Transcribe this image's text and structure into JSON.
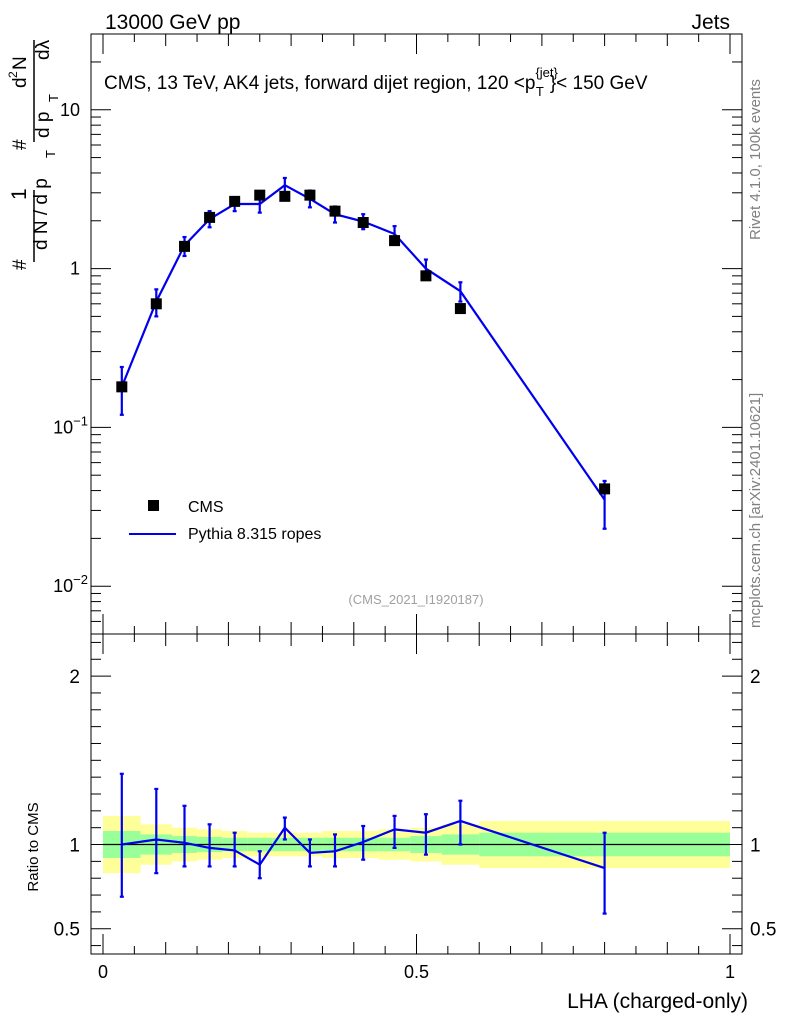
{
  "header": {
    "left": "13000 GeV pp",
    "right": "Jets"
  },
  "side_labels": {
    "rivet": "Rivet 4.1.0,  100k events",
    "mcplots": "mcplots.cern.ch [arXiv:2401.10621]"
  },
  "colors": {
    "data": "#000000",
    "mc": "#0000ee",
    "band_inner": "#99ff99",
    "band_outer": "#ffff99"
  },
  "chart_data": [
    {
      "type": "scatter",
      "title": "CMS, 13 TeV, AK4 jets, forward dijet region, 120 <p",
      "title_sup": "{jet}",
      "title_sub": "T",
      "title_tail": "}< 150 GeV",
      "ylabel_parts": [
        "d",
        "2",
        "N",
        "d p",
        "T",
        "dλ",
        "d N / d p",
        "T",
        "1",
        "#",
        "#"
      ],
      "yscale": "log",
      "ylim": [
        0.005,
        30
      ],
      "xlim": [
        0,
        1
      ],
      "yticks": [
        {
          "value": 10,
          "base": "10",
          "exp": ""
        },
        {
          "value": 1,
          "base": "1",
          "exp": ""
        },
        {
          "value": 0.1,
          "base": "10",
          "exp": "−1"
        },
        {
          "value": 0.01,
          "base": "10",
          "exp": "−2"
        }
      ],
      "watermark": "(CMS_2021_I1920187)",
      "legend": {
        "position": "bottom-left",
        "entries": [
          {
            "label": "CMS",
            "style": "marker"
          },
          {
            "label": "Pythia 8.315 ropes",
            "style": "line"
          }
        ]
      },
      "series": [
        {
          "name": "CMS",
          "x": [
            0.03,
            0.085,
            0.13,
            0.17,
            0.21,
            0.25,
            0.29,
            0.33,
            0.37,
            0.415,
            0.465,
            0.515,
            0.57,
            0.8
          ],
          "y": [
            0.18,
            0.6,
            1.38,
            2.1,
            2.65,
            2.9,
            2.85,
            2.9,
            2.3,
            1.95,
            1.5,
            0.9,
            0.56,
            0.041
          ]
        },
        {
          "name": "Pythia 8.315 ropes",
          "x": [
            0.03,
            0.085,
            0.13,
            0.17,
            0.21,
            0.25,
            0.29,
            0.33,
            0.37,
            0.415,
            0.465,
            0.515,
            0.57,
            0.8
          ],
          "y": [
            0.18,
            0.62,
            1.4,
            2.05,
            2.55,
            2.55,
            3.35,
            2.75,
            2.2,
            1.98,
            1.65,
            1.0,
            0.72,
            0.035
          ],
          "err_lo": [
            0.12,
            0.5,
            1.2,
            1.82,
            2.3,
            2.25,
            2.95,
            2.43,
            1.95,
            1.77,
            1.45,
            0.87,
            0.62,
            0.023
          ],
          "err_hi": [
            0.24,
            0.74,
            1.58,
            2.3,
            2.82,
            2.88,
            3.72,
            3.1,
            2.46,
            2.2,
            1.85,
            1.14,
            0.82,
            0.046
          ]
        }
      ]
    },
    {
      "type": "line",
      "ylabel": "Ratio to CMS",
      "xlabel": "LHA (charged-only)",
      "xlim": [
        0,
        1
      ],
      "ylim": [
        0.35,
        2.25
      ],
      "xticks": [
        {
          "value": 0,
          "label": "0"
        },
        {
          "value": 0.5,
          "label": "0.5"
        },
        {
          "value": 1,
          "label": "1"
        }
      ],
      "yticks": [
        {
          "value": 2,
          "label": "2"
        },
        {
          "value": 1,
          "label": "1"
        },
        {
          "value": 0.5,
          "label": "0.5"
        }
      ],
      "bins": [
        0,
        0.06,
        0.11,
        0.15,
        0.19,
        0.23,
        0.27,
        0.31,
        0.35,
        0.39,
        0.44,
        0.49,
        0.54,
        0.6,
        1.0
      ],
      "band_inner": [
        0.08,
        0.06,
        0.05,
        0.045,
        0.04,
        0.04,
        0.04,
        0.04,
        0.04,
        0.04,
        0.04,
        0.05,
        0.06,
        0.07
      ],
      "band_outer": [
        0.17,
        0.12,
        0.1,
        0.09,
        0.08,
        0.07,
        0.07,
        0.07,
        0.08,
        0.08,
        0.09,
        0.1,
        0.12,
        0.14
      ],
      "series": [
        {
          "name": "Pythia 8.315 ropes",
          "x": [
            0.03,
            0.085,
            0.13,
            0.17,
            0.21,
            0.25,
            0.29,
            0.33,
            0.37,
            0.415,
            0.465,
            0.515,
            0.57,
            0.8
          ],
          "y": [
            1.0,
            1.03,
            1.01,
            0.98,
            0.965,
            0.88,
            1.1,
            0.95,
            0.96,
            1.015,
            1.09,
            1.07,
            1.14,
            0.86
          ],
          "err_lo": [
            0.69,
            0.83,
            0.87,
            0.87,
            0.87,
            0.8,
            1.03,
            0.87,
            0.87,
            0.91,
            0.98,
            0.94,
            1.0,
            0.59
          ],
          "err_hi": [
            1.42,
            1.33,
            1.23,
            1.12,
            1.07,
            0.96,
            1.16,
            1.03,
            1.06,
            1.11,
            1.17,
            1.18,
            1.26,
            1.07
          ]
        }
      ]
    }
  ]
}
